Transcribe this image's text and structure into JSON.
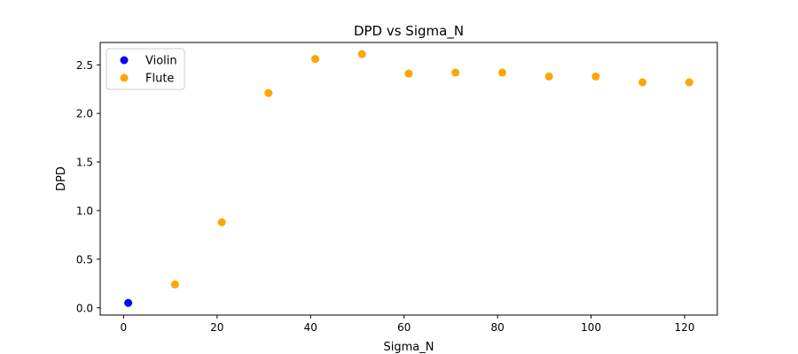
{
  "chart_data": {
    "type": "scatter",
    "title": "DPD vs Sigma_N",
    "xlabel": "Sigma_N",
    "ylabel": "DPD",
    "xlim": [
      -5,
      127
    ],
    "ylim": [
      -0.075,
      2.73
    ],
    "xticks": [
      0,
      20,
      40,
      60,
      80,
      100,
      120
    ],
    "xtick_labels": [
      "0",
      "20",
      "40",
      "60",
      "80",
      "100",
      "120"
    ],
    "yticks": [
      0.0,
      0.5,
      1.0,
      1.5,
      2.0,
      2.5
    ],
    "ytick_labels": [
      "0.0",
      "0.5",
      "1.0",
      "1.5",
      "2.0",
      "2.5"
    ],
    "grid": false,
    "legend_position": "top-left",
    "series": [
      {
        "name": "Violin",
        "color": "#0000ff",
        "x": [
          1
        ],
        "y": [
          0.05
        ]
      },
      {
        "name": "Flute",
        "color": "#ffa500",
        "x": [
          11,
          21,
          31,
          41,
          51,
          61,
          71,
          81,
          91,
          101,
          111,
          121
        ],
        "y": [
          0.24,
          0.88,
          2.21,
          2.56,
          2.61,
          2.41,
          2.42,
          2.42,
          2.38,
          2.38,
          2.32,
          2.32
        ]
      }
    ]
  }
}
